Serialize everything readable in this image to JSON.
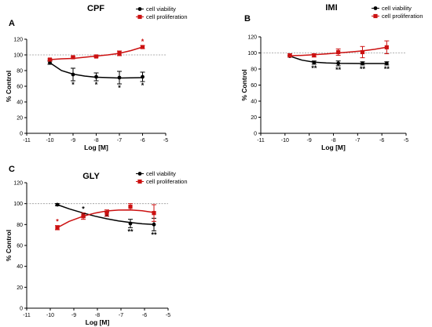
{
  "colors": {
    "viability": "#000000",
    "proliferation": "#cc1111",
    "reference": "#999999"
  },
  "chart_data": [
    {
      "type": "scatter",
      "panel_label": "A",
      "title": "CPF",
      "xlabel": "Log [M]",
      "ylabel": "% Control",
      "xlim": [
        -11,
        -5
      ],
      "ylim": [
        0,
        120
      ],
      "x_ticks": [
        "-11",
        "-10",
        "-9",
        "-8",
        "-7",
        "-6",
        "-5"
      ],
      "y_ticks": [
        "0",
        "20",
        "40",
        "60",
        "80",
        "100",
        "120"
      ],
      "reference_line_y": 100,
      "legend_position": "top-right",
      "series": [
        {
          "name": "cell viability",
          "color": "#000000",
          "marker": "circle",
          "x": [
            -10,
            -9,
            -8,
            -7,
            -6
          ],
          "y": [
            90,
            75,
            72,
            71,
            72
          ],
          "error": [
            2,
            8,
            5,
            8,
            6
          ],
          "significance": [
            "",
            "*",
            "*",
            "*",
            "*"
          ],
          "sig_position": "below",
          "fit": [
            [
              -10,
              90
            ],
            [
              -9.5,
              80
            ],
            [
              -9,
              75.5
            ],
            [
              -8.5,
              73
            ],
            [
              -8,
              71.5
            ],
            [
              -7,
              70.5
            ],
            [
              -6,
              71
            ]
          ]
        },
        {
          "name": "cell proliferation",
          "color": "#cc1111",
          "marker": "square",
          "x": [
            -10,
            -9,
            -8,
            -7,
            -6
          ],
          "y": [
            94,
            97,
            98,
            102,
            110
          ],
          "error": [
            1,
            1,
            1,
            3,
            2
          ],
          "significance": [
            "",
            "",
            "",
            "",
            "*"
          ],
          "sig_position": "above",
          "fit": [
            [
              -10,
              94
            ],
            [
              -9.5,
              95
            ],
            [
              -9,
              95.5
            ],
            [
              -8.5,
              97
            ],
            [
              -8,
              98.5
            ],
            [
              -7.5,
              100
            ],
            [
              -7,
              102
            ],
            [
              -6.5,
              105.5
            ],
            [
              -6,
              110
            ]
          ]
        }
      ]
    },
    {
      "type": "scatter",
      "panel_label": "B",
      "title": "IMI",
      "xlabel": "Log [M]",
      "ylabel": "% Control",
      "xlim": [
        -11,
        -5
      ],
      "ylim": [
        0,
        120
      ],
      "x_ticks": [
        "-11",
        "-10",
        "-9",
        "-8",
        "-7",
        "-6",
        "-5"
      ],
      "y_ticks": [
        "0",
        "20",
        "40",
        "60",
        "80",
        "100",
        "120"
      ],
      "reference_line_y": 100,
      "legend_position": "top-right",
      "series": [
        {
          "name": "cell viability",
          "color": "#000000",
          "marker": "circle",
          "x": [
            -9.8,
            -8.8,
            -7.8,
            -6.8,
            -5.8
          ],
          "y": [
            96,
            88,
            87,
            87,
            87
          ],
          "error": [
            1,
            2,
            3,
            2,
            2
          ],
          "significance": [
            "",
            "**",
            "**",
            "**",
            "**"
          ],
          "sig_position": "below",
          "fit": [
            [
              -9.8,
              96
            ],
            [
              -9.3,
              91
            ],
            [
              -8.8,
              88.5
            ],
            [
              -8.3,
              87.5
            ],
            [
              -7.8,
              87
            ],
            [
              -6.8,
              86.8
            ],
            [
              -5.8,
              86.8
            ]
          ]
        },
        {
          "name": "cell proliferation",
          "color": "#cc1111",
          "marker": "square",
          "x": [
            -9.8,
            -8.8,
            -7.8,
            -6.8,
            -5.8
          ],
          "y": [
            97,
            97,
            101,
            101,
            107
          ],
          "error": [
            2,
            2,
            4,
            7,
            8
          ],
          "significance": [
            "",
            "",
            "",
            "",
            ""
          ],
          "sig_position": "above",
          "fit": [
            [
              -9.8,
              96.5
            ],
            [
              -9.3,
              97
            ],
            [
              -8.8,
              97.8
            ],
            [
              -8.3,
              98.8
            ],
            [
              -7.8,
              100
            ],
            [
              -7.3,
              101.3
            ],
            [
              -6.8,
              102.5
            ],
            [
              -6.3,
              104.5
            ],
            [
              -5.8,
              107
            ]
          ]
        }
      ]
    },
    {
      "type": "scatter",
      "panel_label": "C",
      "title": "GLY",
      "xlabel": "Log [M]",
      "ylabel": "% Control",
      "xlim": [
        -11,
        -5
      ],
      "ylim": [
        0,
        120
      ],
      "x_ticks": [
        "-11",
        "-10",
        "-9",
        "-8",
        "-7",
        "-6",
        "-5"
      ],
      "y_ticks": [
        "0",
        "20",
        "40",
        "60",
        "80",
        "100",
        "120"
      ],
      "reference_line_y": 100,
      "legend_position": "top-right",
      "series": [
        {
          "name": "cell viability",
          "color": "#000000",
          "marker": "circle",
          "x": [
            -9.7,
            -8.6,
            -7.6,
            -6.6,
            -5.6
          ],
          "y": [
            99,
            89,
            90,
            81,
            80
          ],
          "error": [
            1,
            2,
            2,
            4,
            6
          ],
          "significance": [
            "",
            "*",
            "",
            "**",
            "**"
          ],
          "sig_position": "mixed",
          "fit": [
            [
              -9.7,
              99
            ],
            [
              -9.2,
              95
            ],
            [
              -8.6,
              91
            ],
            [
              -8.1,
              88
            ],
            [
              -7.6,
              85.5
            ],
            [
              -7.1,
              83.5
            ],
            [
              -6.6,
              82
            ],
            [
              -6.1,
              80.7
            ],
            [
              -5.6,
              80
            ]
          ]
        },
        {
          "name": "cell proliferation",
          "color": "#cc1111",
          "marker": "square",
          "x": [
            -9.7,
            -8.6,
            -7.6,
            -6.6,
            -5.6
          ],
          "y": [
            77,
            88,
            91,
            97,
            91
          ],
          "error": [
            2,
            3,
            3,
            3,
            8
          ],
          "significance": [
            "*",
            "",
            "",
            "",
            ""
          ],
          "sig_position": "above",
          "fit": [
            [
              -9.7,
              77
            ],
            [
              -9.2,
              83
            ],
            [
              -8.6,
              88
            ],
            [
              -8.1,
              91
            ],
            [
              -7.6,
              93
            ],
            [
              -7.1,
              93.8
            ],
            [
              -6.6,
              94
            ],
            [
              -6.1,
              93.2
            ],
            [
              -5.6,
              91.5
            ]
          ]
        }
      ]
    }
  ]
}
